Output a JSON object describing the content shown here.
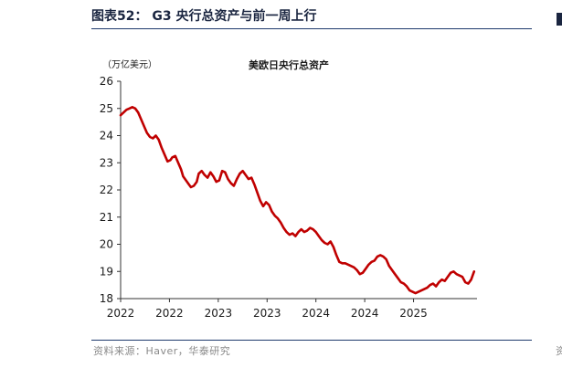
{
  "figure": {
    "title": "图表52： G3 央行总资产与前一周上行",
    "source": "资料来源：Haver，华泰研究"
  },
  "colors": {
    "line": "#c00000",
    "title": "#1a2540",
    "rule": "#1f3a6d",
    "source": "#8a8a8a"
  },
  "chart_data": {
    "type": "line",
    "title": "美欧日央行总资产",
    "ylabel": "（万亿美元）",
    "xlabel": "",
    "ylim": [
      18,
      26
    ],
    "yticks": [
      18,
      19,
      20,
      21,
      22,
      23,
      24,
      25,
      26
    ],
    "xlim": [
      2022.0,
      2025.65
    ],
    "xtick_positions": [
      2022.0,
      2022.5,
      2023.0,
      2023.5,
      2024.0,
      2024.5,
      2025.0
    ],
    "xtick_labels": [
      "2022",
      "2022",
      "2023",
      "2023",
      "2024",
      "2024",
      "2025"
    ],
    "grid": false,
    "legend": "none",
    "series": [
      {
        "x": [
          2022.0,
          2022.03,
          2022.06,
          2022.09,
          2022.12,
          2022.15,
          2022.18,
          2022.21,
          2022.24,
          2022.27,
          2022.3,
          2022.33,
          2022.36,
          2022.39,
          2022.42,
          2022.45,
          2022.48,
          2022.51,
          2022.53,
          2022.56,
          2022.59,
          2022.62,
          2022.64,
          2022.67,
          2022.7,
          2022.72,
          2022.75,
          2022.78,
          2022.8,
          2022.83,
          2022.86,
          2022.89,
          2022.92,
          2022.95,
          2022.98,
          2023.01,
          2023.04,
          2023.07,
          2023.1,
          2023.13,
          2023.16,
          2023.19,
          2023.22,
          2023.25,
          2023.28,
          2023.31,
          2023.34,
          2023.37,
          2023.4,
          2023.43,
          2023.46,
          2023.49,
          2023.52,
          2023.55,
          2023.58,
          2023.61,
          2023.64,
          2023.67,
          2023.7,
          2023.73,
          2023.76,
          2023.79,
          2023.82,
          2023.85,
          2023.88,
          2023.91,
          2023.94,
          2023.97,
          2024.0,
          2024.03,
          2024.06,
          2024.09,
          2024.12,
          2024.15,
          2024.18,
          2024.21,
          2024.24,
          2024.27,
          2024.3,
          2024.33,
          2024.36,
          2024.39,
          2024.42,
          2024.45,
          2024.48,
          2024.51,
          2024.54,
          2024.57,
          2024.6,
          2024.63,
          2024.66,
          2024.69,
          2024.72,
          2024.75,
          2024.78,
          2024.81,
          2024.84,
          2024.87,
          2024.9,
          2024.93,
          2024.96,
          2024.99,
          2025.02,
          2025.05,
          2025.08,
          2025.11,
          2025.14,
          2025.17,
          2025.2,
          2025.23,
          2025.26,
          2025.29,
          2025.32,
          2025.35,
          2025.38,
          2025.41,
          2025.44,
          2025.47,
          2025.5,
          2025.53,
          2025.56,
          2025.59,
          2025.62
        ],
        "values": [
          24.75,
          24.85,
          24.95,
          25.0,
          25.05,
          25.0,
          24.85,
          24.6,
          24.35,
          24.1,
          23.95,
          23.9,
          24.0,
          23.85,
          23.55,
          23.3,
          23.05,
          23.1,
          23.2,
          23.25,
          23.0,
          22.75,
          22.5,
          22.35,
          22.2,
          22.1,
          22.15,
          22.3,
          22.6,
          22.7,
          22.55,
          22.45,
          22.65,
          22.5,
          22.3,
          22.35,
          22.7,
          22.65,
          22.4,
          22.25,
          22.15,
          22.4,
          22.6,
          22.7,
          22.55,
          22.4,
          22.45,
          22.2,
          21.9,
          21.6,
          21.4,
          21.55,
          21.45,
          21.2,
          21.05,
          20.95,
          20.8,
          20.6,
          20.45,
          20.35,
          20.4,
          20.3,
          20.45,
          20.55,
          20.45,
          20.5,
          20.6,
          20.55,
          20.45,
          20.3,
          20.15,
          20.05,
          20.0,
          20.1,
          19.9,
          19.6,
          19.35,
          19.3,
          19.3,
          19.25,
          19.2,
          19.15,
          19.05,
          18.9,
          18.95,
          19.1,
          19.25,
          19.35,
          19.4,
          19.55,
          19.6,
          19.55,
          19.45,
          19.2,
          19.05,
          18.9,
          18.75,
          18.6,
          18.55,
          18.45,
          18.3,
          18.25,
          18.2,
          18.25,
          18.3,
          18.35,
          18.4,
          18.5,
          18.55,
          18.45,
          18.6,
          18.7,
          18.65,
          18.8,
          18.95,
          19.0,
          18.9,
          18.85,
          18.8,
          18.6,
          18.55,
          18.7,
          19.0
        ]
      }
    ]
  }
}
